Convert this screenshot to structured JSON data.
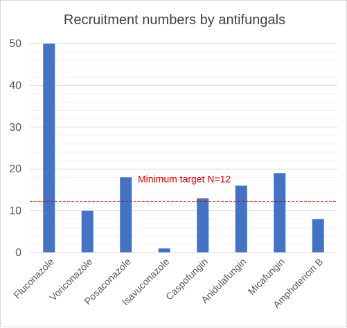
{
  "chart_data": {
    "type": "bar",
    "title": "Recruitment numbers by antifungals",
    "xlabel": "",
    "ylabel": "",
    "categories": [
      "Fluconazole",
      "Voriconazole",
      "Posaconazole",
      "Isavuconazole",
      "Caspofungin",
      "Anidulafungin",
      "Micafungin",
      "Amphotericin B"
    ],
    "values": [
      50,
      10,
      18,
      1,
      13,
      16,
      19,
      8
    ],
    "ylim": [
      0,
      50
    ],
    "yticks": [
      "0",
      "10",
      "20",
      "30",
      "40",
      "50"
    ],
    "grid": true,
    "legend": "none",
    "bar_color": "#4472C4",
    "reference_line": {
      "value": 12.2,
      "label": "Minimum target N=12",
      "color": "#C00000",
      "style": "dashed"
    }
  }
}
